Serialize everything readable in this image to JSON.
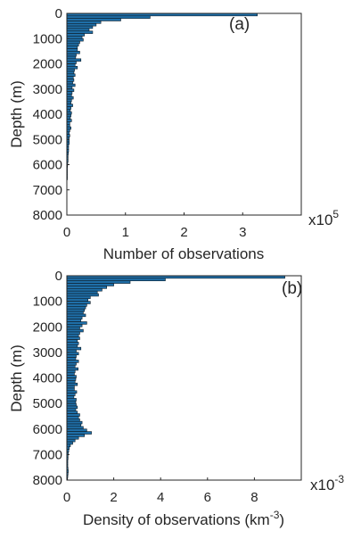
{
  "chart_data": [
    {
      "type": "bar",
      "orientation": "horizontal",
      "panel_label": "(a)",
      "xlabel": "Number of observations",
      "ylabel": "Depth (m)",
      "multiplier": {
        "base": "x10",
        "exponent": "5"
      },
      "xlim": [
        0,
        4
      ],
      "ylim": [
        8000,
        0
      ],
      "y_reversed": true,
      "xticks": [
        {
          "v": 0,
          "label": "0"
        },
        {
          "v": 1,
          "label": "1"
        },
        {
          "v": 2,
          "label": "2"
        },
        {
          "v": 3,
          "label": "3"
        }
      ],
      "yticks": [
        {
          "v": 0,
          "label": "0"
        },
        {
          "v": 1000,
          "label": "1000"
        },
        {
          "v": 2000,
          "label": "2000"
        },
        {
          "v": 3000,
          "label": "3000"
        },
        {
          "v": 4000,
          "label": "4000"
        },
        {
          "v": 5000,
          "label": "5000"
        },
        {
          "v": 6000,
          "label": "6000"
        },
        {
          "v": 7000,
          "label": "7000"
        },
        {
          "v": 8000,
          "label": "8000"
        }
      ],
      "bin_width_m": 100,
      "depth_bins": [
        0,
        100,
        200,
        300,
        400,
        500,
        600,
        700,
        800,
        900,
        1000,
        1100,
        1200,
        1300,
        1400,
        1500,
        1600,
        1700,
        1800,
        1900,
        2000,
        2100,
        2200,
        2300,
        2400,
        2500,
        2600,
        2700,
        2800,
        2900,
        3000,
        3100,
        3200,
        3300,
        3400,
        3500,
        3600,
        3700,
        3800,
        3900,
        4000,
        4100,
        4200,
        4300,
        4400,
        4500,
        4600,
        4700,
        4800,
        4900,
        5000,
        5100,
        5200,
        5300,
        5400,
        5500,
        5600,
        5700,
        5800,
        5900,
        6000,
        6100,
        6200,
        6300,
        6400,
        6500,
        6600,
        6700,
        6800,
        6900,
        7000,
        7100,
        7200,
        7300,
        7400,
        7500,
        7600,
        7700,
        7800,
        7900
      ],
      "values": [
        3.25,
        1.42,
        0.92,
        0.58,
        0.5,
        0.44,
        0.38,
        0.44,
        0.3,
        0.26,
        0.28,
        0.22,
        0.2,
        0.18,
        0.18,
        0.22,
        0.16,
        0.15,
        0.24,
        0.16,
        0.14,
        0.18,
        0.13,
        0.12,
        0.14,
        0.11,
        0.12,
        0.1,
        0.14,
        0.09,
        0.12,
        0.09,
        0.08,
        0.11,
        0.08,
        0.07,
        0.1,
        0.07,
        0.06,
        0.08,
        0.07,
        0.06,
        0.08,
        0.05,
        0.05,
        0.07,
        0.05,
        0.04,
        0.05,
        0.04,
        0.04,
        0.04,
        0.03,
        0.03,
        0.03,
        0.025,
        0.02,
        0.02,
        0.02,
        0.015,
        0.012,
        0.008,
        0.005,
        0.003,
        0.002,
        0.001,
        0,
        0,
        0,
        0,
        0,
        0,
        0,
        0,
        0,
        0,
        0,
        0,
        0,
        0
      ]
    },
    {
      "type": "bar",
      "orientation": "horizontal",
      "panel_label": "(b)",
      "xlabel": "Density of observations (km",
      "xlabel_superscript": "-3",
      "xlabel_suffix": ")",
      "ylabel": "Depth (m)",
      "multiplier": {
        "base": "x10",
        "exponent": "-3"
      },
      "xlim": [
        0,
        10
      ],
      "ylim": [
        8000,
        0
      ],
      "y_reversed": true,
      "xticks": [
        {
          "v": 0,
          "label": "0"
        },
        {
          "v": 2,
          "label": "2"
        },
        {
          "v": 4,
          "label": "4"
        },
        {
          "v": 6,
          "label": "6"
        },
        {
          "v": 8,
          "label": "8"
        }
      ],
      "yticks": [
        {
          "v": 0,
          "label": "0"
        },
        {
          "v": 1000,
          "label": "1000"
        },
        {
          "v": 2000,
          "label": "2000"
        },
        {
          "v": 3000,
          "label": "3000"
        },
        {
          "v": 4000,
          "label": "4000"
        },
        {
          "v": 5000,
          "label": "5000"
        },
        {
          "v": 6000,
          "label": "6000"
        },
        {
          "v": 7000,
          "label": "7000"
        },
        {
          "v": 8000,
          "label": "8000"
        }
      ],
      "bin_width_m": 100,
      "depth_bins": [
        0,
        100,
        200,
        300,
        400,
        500,
        600,
        700,
        800,
        900,
        1000,
        1100,
        1200,
        1300,
        1400,
        1500,
        1600,
        1700,
        1800,
        1900,
        2000,
        2100,
        2200,
        2300,
        2400,
        2500,
        2600,
        2700,
        2800,
        2900,
        3000,
        3100,
        3200,
        3300,
        3400,
        3500,
        3600,
        3700,
        3800,
        3900,
        4000,
        4100,
        4200,
        4300,
        4400,
        4500,
        4600,
        4700,
        4800,
        4900,
        5000,
        5100,
        5200,
        5300,
        5400,
        5500,
        5600,
        5700,
        5800,
        5900,
        6000,
        6100,
        6200,
        6300,
        6400,
        6500,
        6600,
        6700,
        6800,
        6900,
        7000,
        7100,
        7200,
        7300,
        7400,
        7500,
        7600,
        7700,
        7800,
        7900
      ],
      "values": [
        9.3,
        4.2,
        2.7,
        2.0,
        1.7,
        1.5,
        1.3,
        1.35,
        1.0,
        0.9,
        1.0,
        0.85,
        0.8,
        0.75,
        0.7,
        0.8,
        0.65,
        0.6,
        0.85,
        0.65,
        0.55,
        0.7,
        0.55,
        0.5,
        0.55,
        0.45,
        0.5,
        0.45,
        0.6,
        0.4,
        0.5,
        0.4,
        0.38,
        0.5,
        0.4,
        0.35,
        0.48,
        0.35,
        0.32,
        0.4,
        0.38,
        0.35,
        0.45,
        0.32,
        0.32,
        0.42,
        0.35,
        0.3,
        0.4,
        0.38,
        0.4,
        0.45,
        0.38,
        0.45,
        0.55,
        0.5,
        0.55,
        0.65,
        0.6,
        0.7,
        0.85,
        1.05,
        0.75,
        0.5,
        0.35,
        0.25,
        0.15,
        0.1,
        0.08,
        0.06,
        0.05,
        0.05,
        0.04,
        0.04,
        0.04,
        0.05,
        0.06,
        0.05,
        0.04,
        0.03
      ]
    }
  ],
  "colors": {
    "bar_fill": "#1f6fa8",
    "bar_edge": "#0d1b26",
    "axis": "#262626"
  }
}
